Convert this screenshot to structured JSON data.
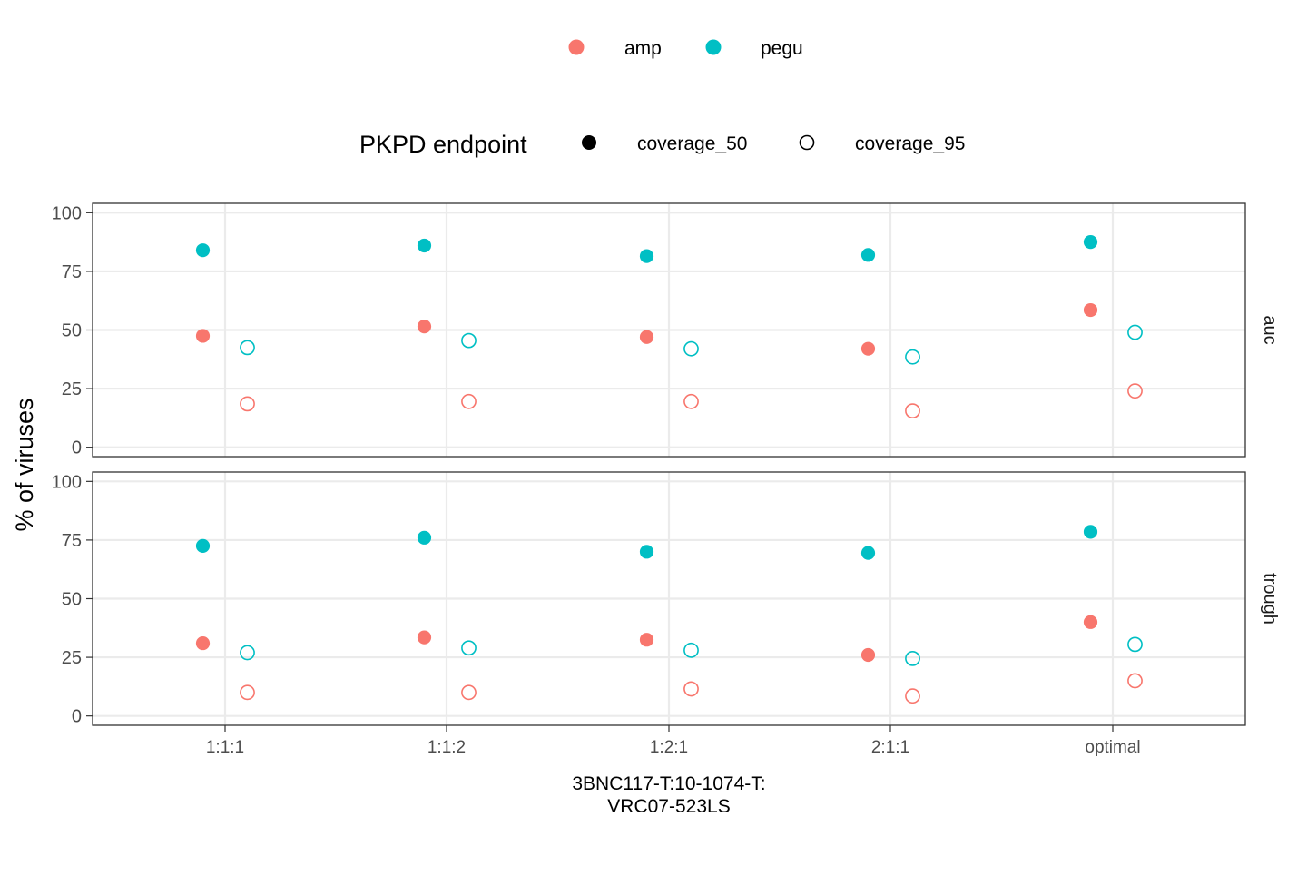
{
  "chart_data": {
    "type": "scatter",
    "legend": {
      "color": {
        "title": "",
        "entries": [
          {
            "label": "amp",
            "color": "#F8766D"
          },
          {
            "label": "pegu",
            "color": "#00BFC4"
          }
        ]
      },
      "shape": {
        "title": "PKPD endpoint",
        "entries": [
          {
            "label": "coverage_50",
            "style": "filled"
          },
          {
            "label": "coverage_95",
            "style": "open"
          }
        ]
      },
      "position": "top"
    },
    "xlabel": "3BNC117-T:10-1074-T:\nVRC07-523LS",
    "ylabel": "% of viruses",
    "categories": [
      "1:1:1",
      "1:1:2",
      "1:2:1",
      "2:1:1",
      "optimal"
    ],
    "yticks": [
      0,
      25,
      50,
      75,
      100
    ],
    "ylim": [
      -4,
      104
    ],
    "grid": true,
    "facets": [
      {
        "label": "auc",
        "series": [
          {
            "name": "amp",
            "endpoint": "coverage_50",
            "values": [
              47.5,
              51.5,
              47,
              42,
              58.5
            ]
          },
          {
            "name": "pegu",
            "endpoint": "coverage_50",
            "values": [
              84,
              86,
              81.5,
              82,
              87.5
            ]
          },
          {
            "name": "amp",
            "endpoint": "coverage_95",
            "values": [
              18.5,
              19.5,
              19.5,
              15.5,
              24
            ]
          },
          {
            "name": "pegu",
            "endpoint": "coverage_95",
            "values": [
              42.5,
              45.5,
              42,
              38.5,
              49
            ]
          }
        ]
      },
      {
        "label": "trough",
        "series": [
          {
            "name": "amp",
            "endpoint": "coverage_50",
            "values": [
              31,
              33.5,
              32.5,
              26,
              40
            ]
          },
          {
            "name": "pegu",
            "endpoint": "coverage_50",
            "values": [
              72.5,
              76,
              70,
              69.5,
              78.5
            ]
          },
          {
            "name": "amp",
            "endpoint": "coverage_95",
            "values": [
              10,
              10,
              11.5,
              8.5,
              15
            ]
          },
          {
            "name": "pegu",
            "endpoint": "coverage_95",
            "values": [
              27,
              29,
              28,
              24.5,
              30.5
            ]
          }
        ]
      }
    ]
  }
}
